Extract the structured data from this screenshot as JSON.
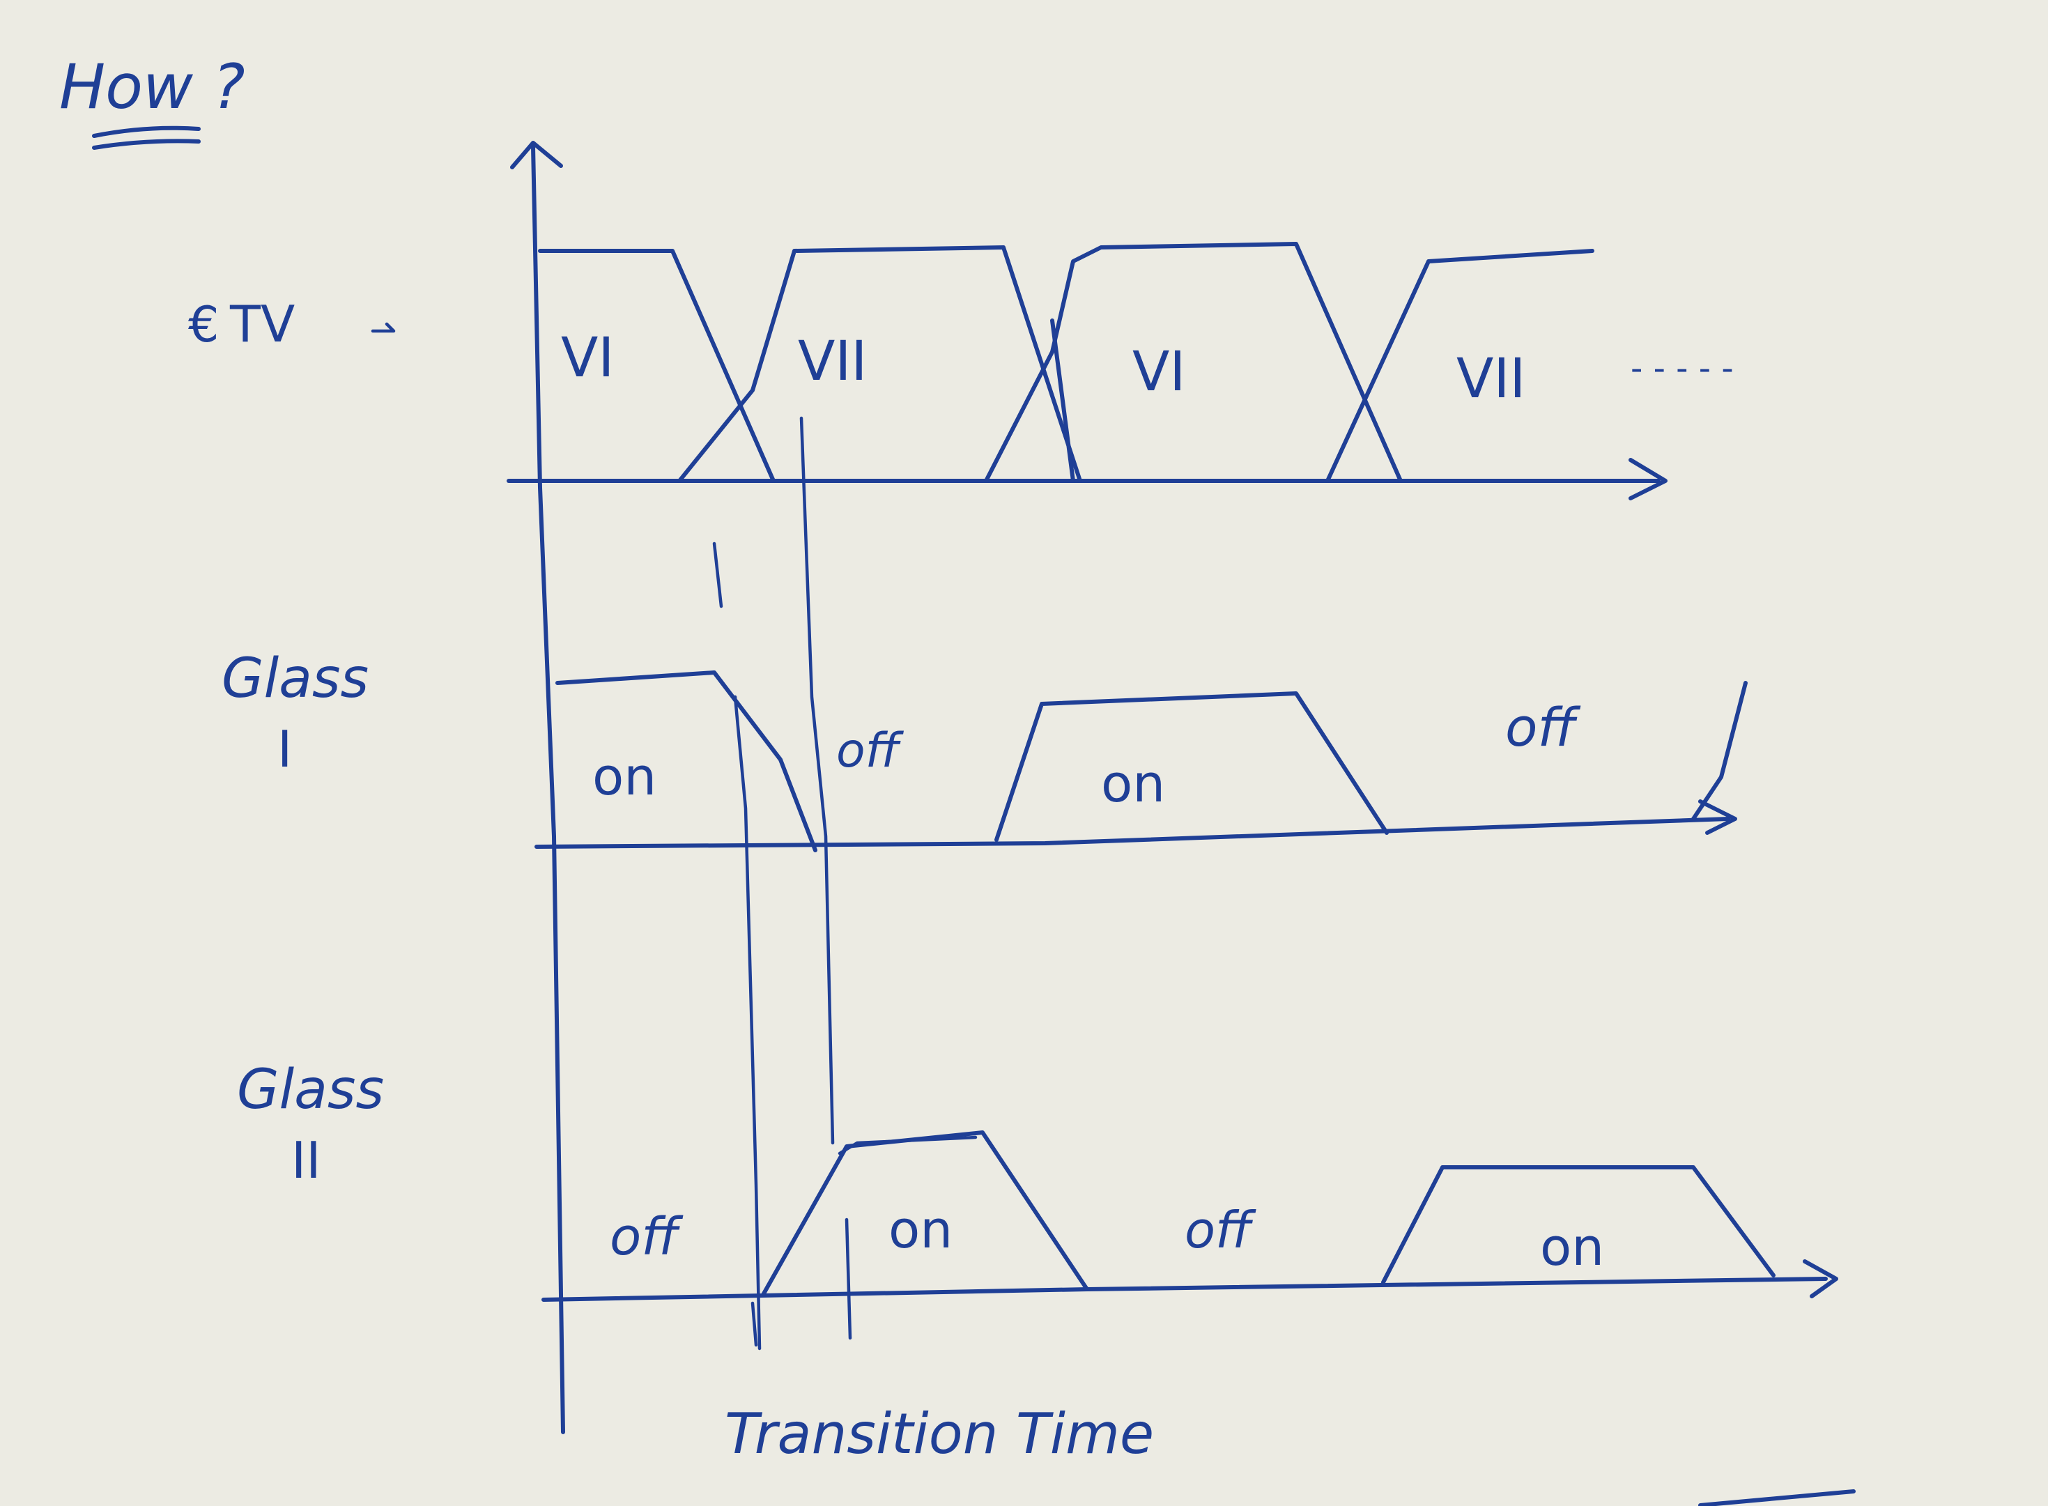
{
  "heading": "How ?",
  "row_labels": {
    "tv": "TV",
    "glass1_line1": "Glass",
    "glass1_line2": "I",
    "glass2_line1": "Glass",
    "glass2_line2": "II"
  },
  "tv_signal_labels": [
    "VI",
    "VII",
    "VI",
    "VII"
  ],
  "tv_continuation": "- - - - -",
  "glass1_labels": [
    "on",
    "off",
    "on",
    "off"
  ],
  "glass2_labels": [
    "off",
    "on",
    "off",
    "on"
  ],
  "footer_label": "Transition Time"
}
